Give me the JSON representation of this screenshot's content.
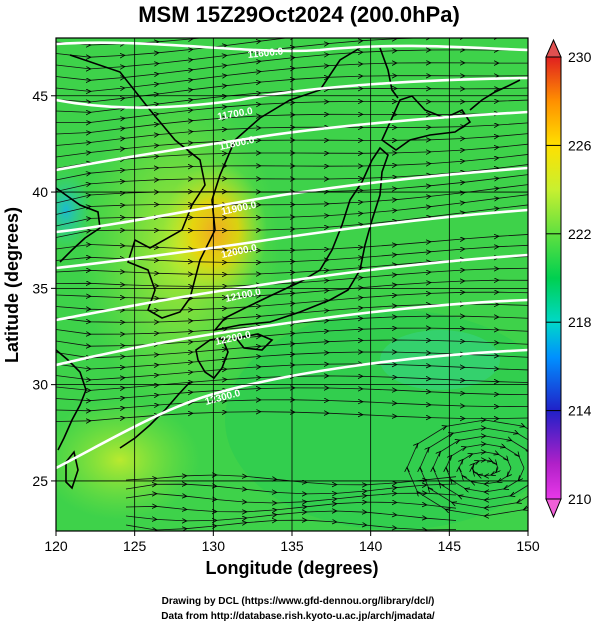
{
  "title": "MSM 15Z29Oct2024 (200.0hPa)",
  "xlabel": "Longitude (degrees)",
  "ylabel": "Latitude  (degrees)",
  "map": {
    "lon_range": [
      120,
      150
    ],
    "lat_range": [
      22.4,
      48
    ],
    "x_ticks": [
      "120",
      "125",
      "130",
      "135",
      "140",
      "145",
      "150"
    ],
    "y_ticks": [
      {
        "lat": 25,
        "label": "25"
      },
      {
        "lat": 30,
        "label": "30"
      },
      {
        "lat": 35,
        "label": "35"
      },
      {
        "lat": 40,
        "label": "40"
      },
      {
        "lat": 45,
        "label": "45"
      }
    ],
    "grid": true,
    "field": "temperature shading with streamlines and white height contours"
  },
  "colorbar": {
    "min": 210,
    "max": 230,
    "tick_labels": [
      "230",
      "226",
      "222",
      "218",
      "214",
      "210"
    ],
    "stops": [
      "#e838e8",
      "#c020c0",
      "#2020c8",
      "#0090ff",
      "#00d8c8",
      "#00d050",
      "#60e040",
      "#c8f030",
      "#ffe000",
      "#ff9000",
      "#e02020"
    ]
  },
  "contours": [
    {
      "label": "11600.0"
    },
    {
      "label": "11700.0"
    },
    {
      "label": "11800.0"
    },
    {
      "label": "11900.0"
    },
    {
      "label": "12000.0"
    },
    {
      "label": "12100.0"
    },
    {
      "label": "12200.0"
    },
    {
      "label": "12300.0"
    }
  ],
  "credits": {
    "line1": "Drawing by DCL (https://www.gfd-dennou.org/library/dcl/)",
    "line2": "Data from http://database.rish.kyoto-u.ac.jp/arch/jmadata/"
  }
}
